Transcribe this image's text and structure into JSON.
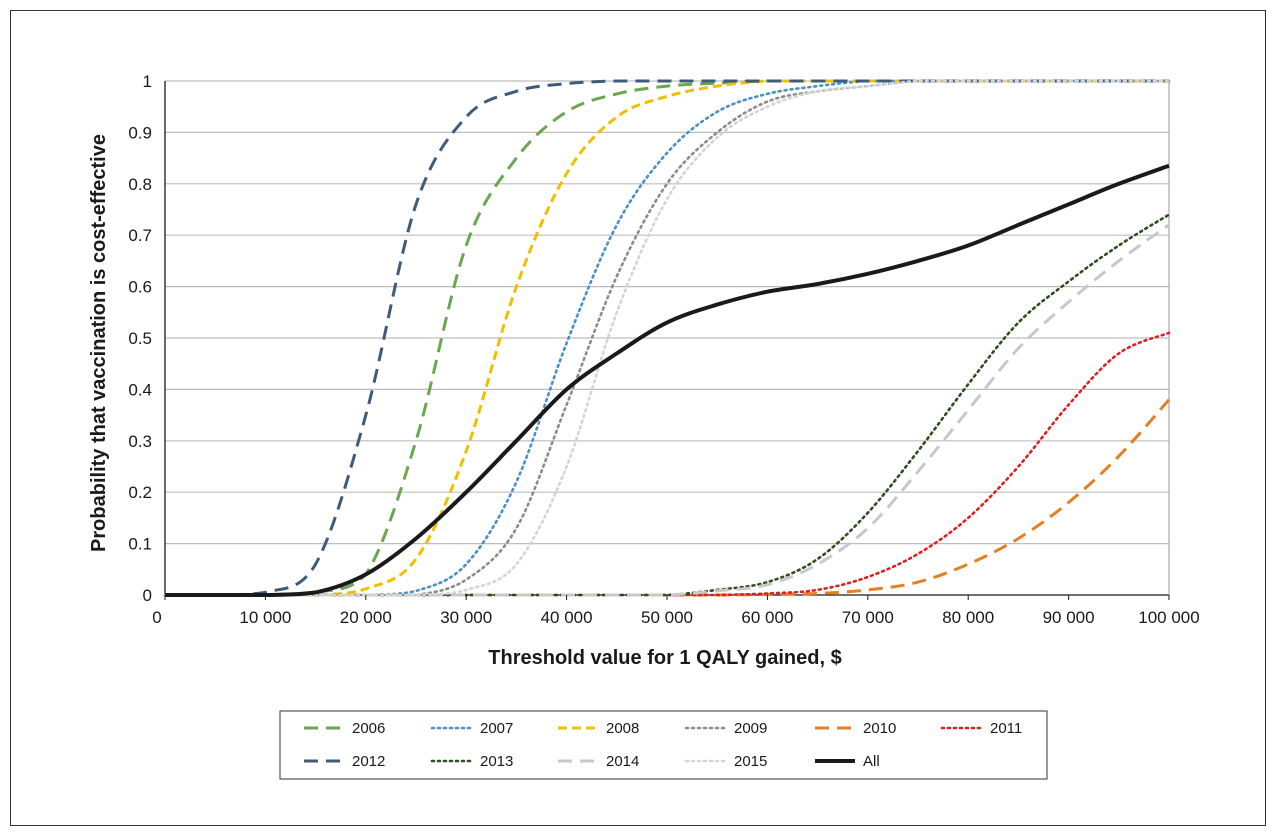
{
  "chart_data": {
    "type": "line",
    "title": "",
    "xlabel": "Threshold value for 1 QALY gained, $",
    "ylabel": "Probability that vaccination is cost-effective",
    "xlim": [
      0,
      100000
    ],
    "ylim": [
      0,
      1
    ],
    "grid": "horizontal",
    "legend_position": "bottom",
    "x_tick_labels": [
      "0",
      "10 000",
      "20 000",
      "30 000",
      "40 000",
      "50 000",
      "60 000",
      "70 000",
      "80 000",
      "90 000",
      "100 000"
    ],
    "y_tick_labels": [
      "0",
      "0.1",
      "0.2",
      "0.3",
      "0.4",
      "0.5",
      "0.6",
      "0.7",
      "0.8",
      "0.9",
      "1"
    ],
    "x": [
      0,
      5000,
      10000,
      15000,
      20000,
      25000,
      30000,
      35000,
      40000,
      45000,
      50000,
      55000,
      60000,
      65000,
      70000,
      75000,
      80000,
      85000,
      90000,
      95000,
      100000
    ],
    "series": [
      {
        "name": "2006",
        "color": "#6aa84f",
        "style": "longdash",
        "values": [
          0,
          0,
          0,
          0.005,
          0.04,
          0.3,
          0.68,
          0.85,
          0.94,
          0.975,
          0.99,
          0.996,
          1,
          1,
          1,
          1,
          1,
          1,
          1,
          1,
          1
        ]
      },
      {
        "name": "2007",
        "color": "#4a90c8",
        "style": "dot",
        "values": [
          0,
          0,
          0,
          0,
          0,
          0.008,
          0.06,
          0.22,
          0.49,
          0.72,
          0.86,
          0.94,
          0.975,
          0.99,
          1,
          1,
          1,
          1,
          1,
          1,
          1
        ]
      },
      {
        "name": "2008",
        "color": "#f1bf00",
        "style": "dash",
        "values": [
          0,
          0,
          0,
          0,
          0.012,
          0.07,
          0.28,
          0.6,
          0.82,
          0.93,
          0.97,
          0.99,
          1,
          1,
          1,
          1,
          1,
          1,
          1,
          1,
          1
        ]
      },
      {
        "name": "2009",
        "color": "#8c8c8c",
        "style": "dot",
        "values": [
          0,
          0,
          0,
          0,
          0,
          0,
          0.03,
          0.13,
          0.37,
          0.62,
          0.8,
          0.9,
          0.96,
          0.98,
          0.99,
          1,
          1,
          1,
          1,
          1,
          1
        ]
      },
      {
        "name": "2010",
        "color": "#e67e22",
        "style": "longdash",
        "values": [
          0,
          0,
          0,
          0,
          0,
          0,
          0,
          0,
          0,
          0,
          0,
          0,
          0.001,
          0.003,
          0.01,
          0.025,
          0.06,
          0.11,
          0.18,
          0.27,
          0.38
        ]
      },
      {
        "name": "2011",
        "color": "#e02020",
        "style": "dot",
        "values": [
          0,
          0,
          0,
          0,
          0,
          0,
          0,
          0,
          0,
          0,
          0,
          0,
          0.003,
          0.01,
          0.035,
          0.08,
          0.15,
          0.25,
          0.37,
          0.47,
          0.51
        ]
      },
      {
        "name": "2012",
        "color": "#3f5b7a",
        "style": "longdash",
        "values": [
          0,
          0,
          0.005,
          0.06,
          0.35,
          0.76,
          0.93,
          0.98,
          0.995,
          1,
          1,
          1,
          1,
          1,
          1,
          1,
          1,
          1,
          1,
          1,
          1
        ]
      },
      {
        "name": "2013",
        "color": "#2f4f1f",
        "style": "dot",
        "values": [
          0,
          0,
          0,
          0,
          0,
          0,
          0,
          0,
          0,
          0,
          0,
          0.01,
          0.025,
          0.07,
          0.16,
          0.28,
          0.41,
          0.53,
          0.61,
          0.68,
          0.74
        ]
      },
      {
        "name": "2014",
        "color": "#c8c8c8",
        "style": "longdash",
        "values": [
          0,
          0,
          0,
          0,
          0,
          0,
          0,
          0,
          0,
          0,
          0,
          0.008,
          0.02,
          0.06,
          0.13,
          0.24,
          0.36,
          0.48,
          0.57,
          0.65,
          0.72
        ]
      },
      {
        "name": "2015",
        "color": "#d4d4d4",
        "style": "dot",
        "values": [
          0,
          0,
          0,
          0,
          0,
          0,
          0.01,
          0.06,
          0.25,
          0.55,
          0.77,
          0.89,
          0.95,
          0.98,
          0.99,
          1,
          1,
          1,
          1,
          1,
          1
        ]
      },
      {
        "name": "All",
        "color": "#1a1a1a",
        "style": "solid",
        "values": [
          0,
          0,
          0,
          0.005,
          0.04,
          0.11,
          0.2,
          0.3,
          0.4,
          0.47,
          0.53,
          0.565,
          0.59,
          0.605,
          0.625,
          0.65,
          0.68,
          0.72,
          0.76,
          0.8,
          0.835
        ]
      }
    ]
  }
}
